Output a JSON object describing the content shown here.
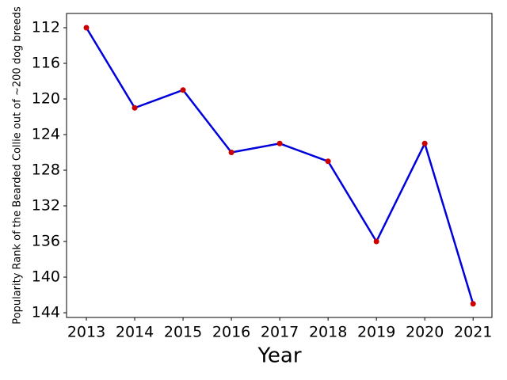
{
  "chart_data": {
    "type": "line",
    "xlabel": "Year",
    "ylabel": "Popularity Rank of the Bearded Collie out of ~200 dog breeds",
    "x": [
      2013,
      2014,
      2015,
      2016,
      2017,
      2018,
      2019,
      2020,
      2021
    ],
    "series": [
      {
        "color": "#0000dd",
        "marker_color": "#cc0000",
        "values": [
          112,
          121,
          119,
          126,
          125,
          127,
          136,
          125,
          143
        ]
      }
    ],
    "xlim": [
      2012.59,
      2021.39
    ],
    "xticks": [
      2013,
      2014,
      2015,
      2016,
      2017,
      2018,
      2019,
      2020,
      2021
    ],
    "ylim": [
      144.53,
      110.4
    ],
    "yticks": [
      112,
      116,
      120,
      124,
      128,
      132,
      136,
      140,
      144
    ],
    "y_inverted": true,
    "grid": false
  }
}
